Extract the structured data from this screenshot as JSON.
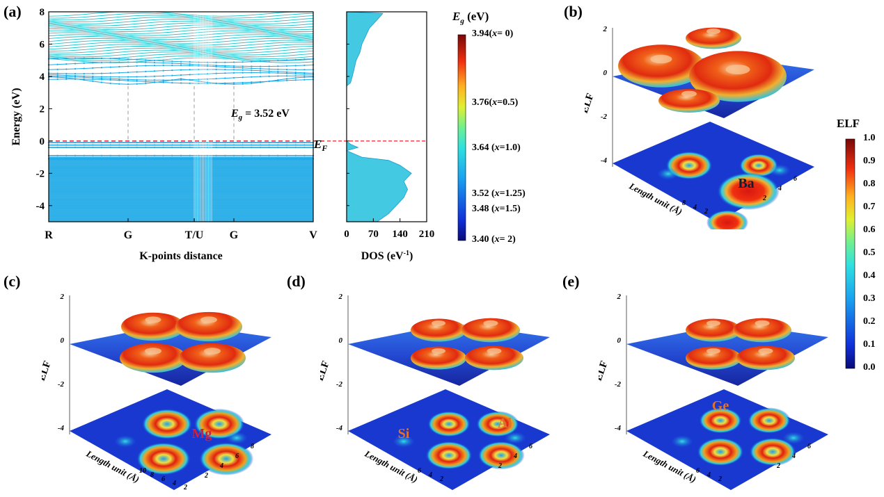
{
  "panels": {
    "a": "(a)",
    "b": "(b)",
    "c": "(c)",
    "d": "(d)",
    "e": "(e)"
  },
  "colors": {
    "band_conduction": "#19c2cc",
    "band_valence": "#1aa8e6",
    "fermi": "#e0242a",
    "dos_fill": "#44c9e2"
  },
  "chart_data": [
    {
      "type": "line",
      "name": "band-structure",
      "xlabel": "K-points distance",
      "ylabel": "Energy (eV)",
      "ylim": [
        -5,
        8
      ],
      "yticks": [
        -4,
        -2,
        0,
        2,
        4,
        6,
        8
      ],
      "xticks": [
        "R",
        "G",
        "T/U",
        "G",
        "V"
      ],
      "xtick_positions": [
        0,
        0.3,
        0.55,
        0.7,
        1.0
      ],
      "fermi_level": 0,
      "fermi_label": "F",
      "fermi_label_main": "E",
      "gap_label_main": "E",
      "gap_label_sub": "g",
      "gap_label_value": " = 3.52 eV",
      "bandgap": 3.52,
      "cbm_levels": [
        3.52,
        3.7,
        3.9,
        4.1,
        4.3,
        4.55,
        4.75,
        5.0
      ],
      "vbm_levels": [
        -0.1,
        -0.25,
        -0.4,
        -0.9,
        -1.1
      ],
      "valence_continuum_range": [
        -5,
        -1.0
      ],
      "conduction_continuum_range": [
        5.0,
        8
      ]
    },
    {
      "type": "area",
      "name": "dos",
      "xlabel_main": "DOS (eV",
      "xlabel_sup": "-1",
      "xlabel_end": ")",
      "xlim": [
        0,
        210
      ],
      "xticks": [
        0,
        70,
        140,
        210
      ],
      "ylim": [
        -5,
        8
      ],
      "energy": [
        -5,
        -4.5,
        -4,
        -3.5,
        -3,
        -2.5,
        -2,
        -1.5,
        -1.2,
        -1.0,
        -0.6,
        -0.4,
        -0.2,
        0,
        3.4,
        3.6,
        4.0,
        4.5,
        5.0,
        5.5,
        6.0,
        6.5,
        7.0,
        7.5,
        7.9
      ],
      "dos": [
        80,
        110,
        130,
        150,
        160,
        150,
        170,
        140,
        110,
        40,
        0,
        30,
        10,
        0,
        0,
        10,
        15,
        20,
        25,
        35,
        40,
        50,
        60,
        80,
        95
      ]
    },
    {
      "type": "heatmap",
      "name": "bandgap-colorbar",
      "title_main": "E",
      "title_sub": "g",
      "title_unit": " (eV)",
      "range": [
        3.4,
        3.94
      ],
      "ticks": [
        {
          "value": 3.94,
          "label": "3.94",
          "x_label": "x",
          "x_value": "= 0"
        },
        {
          "value": 3.76,
          "label": "3.76",
          "x_label": "x",
          "x_value": "=0.5"
        },
        {
          "value": 3.64,
          "label": "3.64",
          "x_label": "x",
          "x_value": "=1.0"
        },
        {
          "value": 3.52,
          "label": "3.52",
          "x_label": "x",
          "x_value": "=1.25"
        },
        {
          "value": 3.48,
          "label": "3.48",
          "x_label": "x",
          "x_value": "=1.5"
        },
        {
          "value": 3.4,
          "label": "3.40",
          "x_label": "x",
          "x_value": "= 2"
        }
      ]
    },
    {
      "type": "heatmap",
      "name": "elf-colorbar",
      "title": "ELF",
      "range": [
        0,
        1
      ],
      "ticks": [
        "1.0",
        "0.9",
        "0.8",
        "0.7",
        "0.6",
        "0.5",
        "0.4",
        "0.3",
        "0.2",
        "0.1",
        "0.0"
      ]
    }
  ],
  "elf_plots": {
    "b": {
      "z_label": "ELF",
      "z_ticks": [
        "2",
        "0",
        "-2",
        "-4"
      ],
      "axis_label": "Length unit (Å)",
      "axis_ticks_a": [
        "6",
        "4",
        "2"
      ],
      "axis_ticks_b": [
        "8",
        "4",
        "2"
      ],
      "atoms": [
        "Ba"
      ]
    },
    "c": {
      "z_label": "ELF",
      "z_ticks": [
        "2",
        "0",
        "-2",
        "-4"
      ],
      "axis_label": "Length unit (Å)",
      "axis_ticks_a": [
        "8",
        "6",
        "4",
        "2"
      ],
      "axis_ticks_b": [
        "10",
        "8",
        "6",
        "4",
        "2"
      ],
      "atoms": [
        "Mg"
      ]
    },
    "d": {
      "z_label": "ELF",
      "z_ticks": [
        "2",
        "0",
        "-2",
        "-4"
      ],
      "axis_label": "Length unit (Å)",
      "axis_ticks_a": [
        "6",
        "4",
        "2"
      ],
      "axis_ticks_b": [
        "6",
        "4",
        "2"
      ],
      "atoms": [
        "Si",
        "Al"
      ]
    },
    "e": {
      "z_label": "ELF",
      "z_ticks": [
        "2",
        "0",
        "-2",
        "-4"
      ],
      "axis_label": "Length unit (Å)",
      "axis_ticks_a": [
        "6",
        "4",
        "2"
      ],
      "axis_ticks_b": [
        "6",
        "4",
        "2"
      ],
      "atoms": [
        "Ge"
      ]
    }
  }
}
